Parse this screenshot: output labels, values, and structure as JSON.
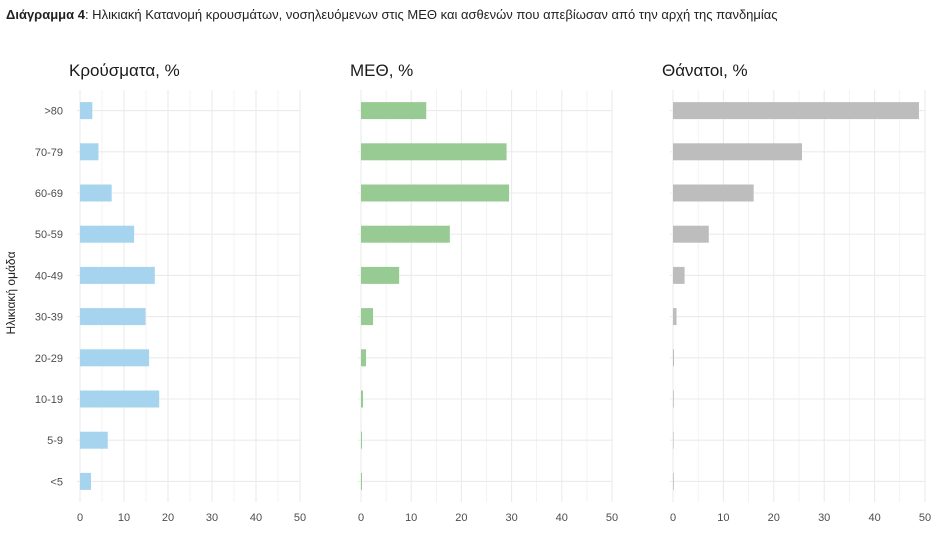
{
  "caption": {
    "bold": "Διάγραμμα 4",
    "rest": ": Ηλικιακή Κατανομή κρουσμάτων, νοσηλευόμενων στις ΜΕΘ και ασθενών που απεβίωσαν από την αρχή της πανδημίας"
  },
  "ylabel": "Ηλικιακή ομάδα",
  "colors": {
    "cases": "#a6d3ee",
    "icu": "#98cb94",
    "deaths": "#bdbdbd",
    "grid": "#ebebeb"
  },
  "chart_data": [
    {
      "type": "bar",
      "orientation": "horizontal",
      "title": "Κρούσματα, %",
      "categories": [
        ">80",
        "70-79",
        "60-69",
        "50-59",
        "40-49",
        "30-39",
        "20-29",
        "10-19",
        "5-9",
        "<5"
      ],
      "values": [
        2.8,
        4.2,
        7.2,
        12.3,
        17.0,
        14.9,
        15.7,
        18.0,
        6.3,
        2.5
      ],
      "xlim": [
        0,
        50
      ],
      "xticks": [
        0,
        10,
        20,
        30,
        40,
        50
      ],
      "grid": true
    },
    {
      "type": "bar",
      "orientation": "horizontal",
      "title": "ΜΕΘ, %",
      "categories": [
        ">80",
        "70-79",
        "60-69",
        "50-59",
        "40-49",
        "30-39",
        "20-29",
        "10-19",
        "5-9",
        "<5"
      ],
      "values": [
        13.0,
        29.0,
        29.5,
        17.7,
        7.6,
        2.4,
        1.0,
        0.4,
        0.2,
        0.2
      ],
      "xlim": [
        0,
        50
      ],
      "xticks": [
        0,
        10,
        20,
        30,
        40,
        50
      ],
      "grid": true
    },
    {
      "type": "bar",
      "orientation": "horizontal",
      "title": "Θάνατοι, %",
      "categories": [
        ">80",
        "70-79",
        "60-69",
        "50-59",
        "40-49",
        "30-39",
        "20-29",
        "10-19",
        "5-9",
        "<5"
      ],
      "values": [
        48.8,
        25.6,
        16.0,
        7.1,
        2.3,
        0.7,
        0.2,
        0.1,
        0.0,
        0.05
      ],
      "xlim": [
        0,
        50
      ],
      "xticks": [
        0,
        10,
        20,
        30,
        40,
        50
      ],
      "grid": true
    }
  ]
}
